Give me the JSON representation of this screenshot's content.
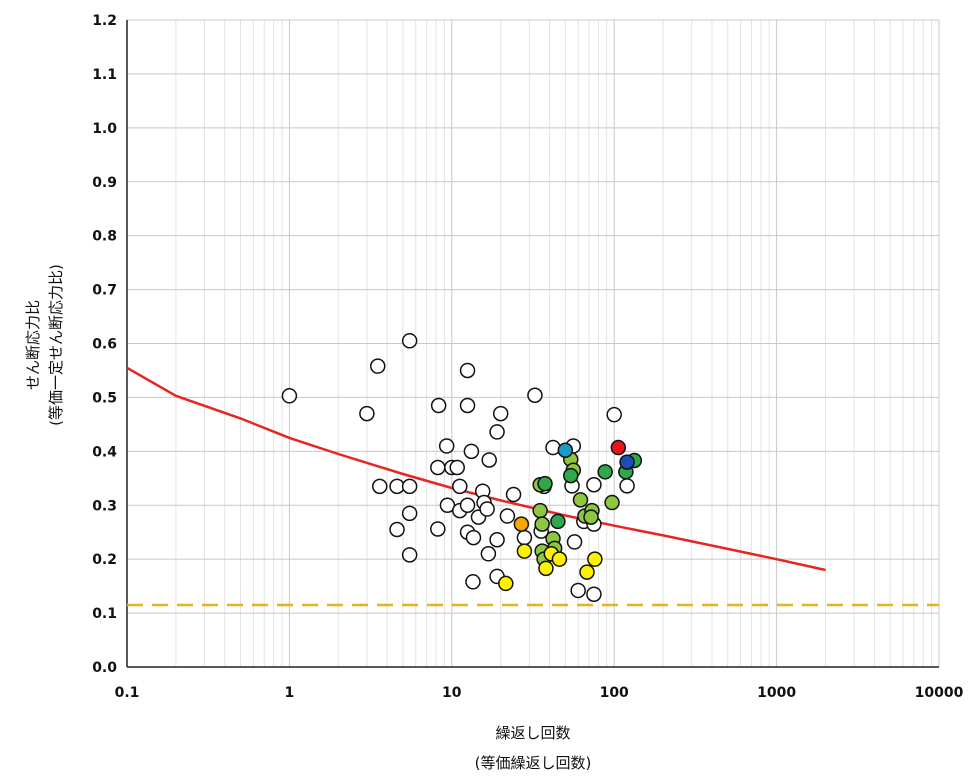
{
  "chart_data": {
    "type": "scatter",
    "title": "",
    "xlabel": "繰返し回数",
    "xlabel_sub": "(等価繰返し回数)",
    "ylabel": "せん断応力比",
    "ylabel_sub": "(等価一定せん断応力比)",
    "x_scale": "log",
    "xlim": [
      0.1,
      10000
    ],
    "ylim": [
      0.0,
      1.2
    ],
    "x_ticks": [
      "0.1",
      "1",
      "10",
      "100",
      "1000",
      "10000"
    ],
    "y_ticks": [
      "0.0",
      "0.1",
      "0.2",
      "0.3",
      "0.4",
      "0.5",
      "0.6",
      "0.7",
      "0.8",
      "0.9",
      "1.0",
      "1.1",
      "1.2"
    ],
    "grid": true,
    "legend": "none",
    "colors": {
      "curve": "#e8251f",
      "threshold": "#e6b422",
      "open": "#ffffff",
      "light_green": "#8dc63f",
      "green": "#2ea84a",
      "yellow": "#fff200",
      "orange": "#f7a800",
      "teal": "#1a9cc9",
      "blue": "#1d4fb8",
      "red": "#e8151b"
    },
    "curve": {
      "x": [
        0.1,
        0.2,
        0.5,
        1,
        2,
        5,
        10,
        20,
        50,
        100,
        200,
        500,
        1000,
        2000
      ],
      "y": [
        0.555,
        0.503,
        0.461,
        0.425,
        0.395,
        0.358,
        0.332,
        0.309,
        0.281,
        0.262,
        0.244,
        0.219,
        0.2,
        0.18
      ]
    },
    "threshold_y": 0.115,
    "series": [
      {
        "marker": "open",
        "points": [
          [
            1,
            0.503
          ],
          [
            3.0,
            0.47
          ],
          [
            3.5,
            0.558
          ],
          [
            5.5,
            0.605
          ],
          [
            3.6,
            0.335
          ],
          [
            4.6,
            0.335
          ],
          [
            5.5,
            0.335
          ],
          [
            4.6,
            0.255
          ],
          [
            5.5,
            0.285
          ],
          [
            5.5,
            0.208
          ],
          [
            8.3,
            0.485
          ],
          [
            8.2,
            0.37
          ],
          [
            9.3,
            0.41
          ],
          [
            10.0,
            0.37
          ],
          [
            10.8,
            0.37
          ],
          [
            9.4,
            0.3
          ],
          [
            11.2,
            0.335
          ],
          [
            11.2,
            0.29
          ],
          [
            8.2,
            0.256
          ],
          [
            12.5,
            0.55
          ],
          [
            12.5,
            0.485
          ],
          [
            13.2,
            0.4
          ],
          [
            12.5,
            0.3
          ],
          [
            12.5,
            0.25
          ],
          [
            13.6,
            0.24
          ],
          [
            13.5,
            0.158
          ],
          [
            14.6,
            0.278
          ],
          [
            15.5,
            0.326
          ],
          [
            15.8,
            0.305
          ],
          [
            16.5,
            0.293
          ],
          [
            17.0,
            0.384
          ],
          [
            16.8,
            0.21
          ],
          [
            19.0,
            0.436
          ],
          [
            20.0,
            0.47
          ],
          [
            19.0,
            0.236
          ],
          [
            19.0,
            0.168
          ],
          [
            22.0,
            0.28
          ],
          [
            24.0,
            0.32
          ],
          [
            28.0,
            0.24
          ],
          [
            32.5,
            0.504
          ],
          [
            35.5,
            0.252
          ],
          [
            37.0,
            0.335
          ],
          [
            42.0,
            0.407
          ],
          [
            55.0,
            0.336
          ],
          [
            56.0,
            0.41
          ],
          [
            57.0,
            0.232
          ],
          [
            60.0,
            0.142
          ],
          [
            65.0,
            0.27
          ],
          [
            75.0,
            0.338
          ],
          [
            75.0,
            0.265
          ],
          [
            75.0,
            0.135
          ],
          [
            100.0,
            0.468
          ],
          [
            120.0,
            0.336
          ]
        ]
      },
      {
        "marker": "light_green",
        "points": [
          [
            35.0,
            0.338
          ],
          [
            35.0,
            0.29
          ],
          [
            36.0,
            0.265
          ],
          [
            36.0,
            0.215
          ],
          [
            37.0,
            0.2
          ],
          [
            42.0,
            0.238
          ],
          [
            43.0,
            0.22
          ],
          [
            54.0,
            0.385
          ],
          [
            56.0,
            0.365
          ],
          [
            62.0,
            0.31
          ],
          [
            66.0,
            0.28
          ],
          [
            73.0,
            0.29
          ],
          [
            72.0,
            0.278
          ],
          [
            97.0,
            0.305
          ]
        ]
      },
      {
        "marker": "green",
        "points": [
          [
            37.5,
            0.34
          ],
          [
            45.0,
            0.27
          ],
          [
            54.0,
            0.355
          ],
          [
            88.0,
            0.362
          ],
          [
            118.0,
            0.362
          ],
          [
            133.0,
            0.383
          ]
        ]
      },
      {
        "marker": "yellow",
        "points": [
          [
            21.5,
            0.155
          ],
          [
            28.0,
            0.215
          ],
          [
            38.0,
            0.183
          ],
          [
            41.0,
            0.21
          ],
          [
            46.0,
            0.2
          ],
          [
            68.0,
            0.176
          ],
          [
            76.0,
            0.2
          ]
        ]
      },
      {
        "marker": "orange",
        "points": [
          [
            26.8,
            0.265
          ]
        ]
      },
      {
        "marker": "teal",
        "points": [
          [
            50.0,
            0.402
          ]
        ]
      },
      {
        "marker": "blue",
        "points": [
          [
            120.0,
            0.38
          ]
        ]
      },
      {
        "marker": "red",
        "points": [
          [
            106.0,
            0.407
          ]
        ]
      }
    ]
  }
}
